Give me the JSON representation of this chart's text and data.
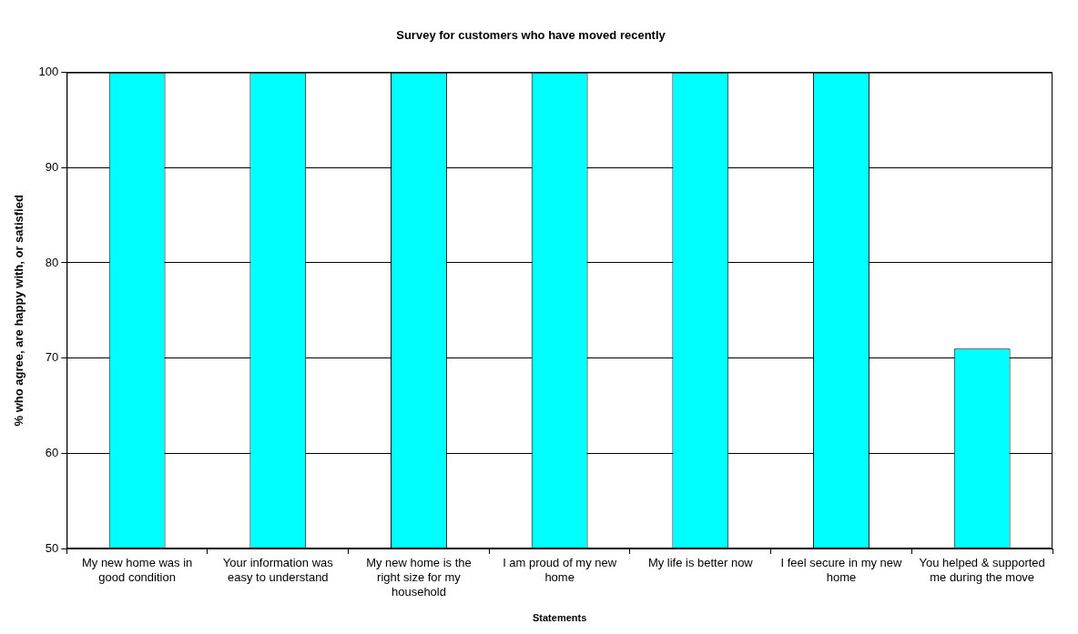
{
  "chart_data": {
    "type": "bar",
    "title": "Survey for customers who have moved recently",
    "xlabel": "Statements",
    "ylabel": "% who agree, are happy with, or satisfied",
    "categories": [
      "My new home was in good condition",
      "Your information was easy to understand",
      "My new home is the right size for my household",
      "I am proud of my new home",
      "My life is better now",
      "I feel secure in my new home",
      "You helped & supported me during the move"
    ],
    "values": [
      100,
      100,
      100,
      100,
      100,
      100,
      71
    ],
    "color": "#00ffff",
    "ylim": [
      50,
      100
    ],
    "yticks": [
      50,
      60,
      70,
      80,
      90,
      100
    ],
    "grid": "y",
    "legend": false
  }
}
